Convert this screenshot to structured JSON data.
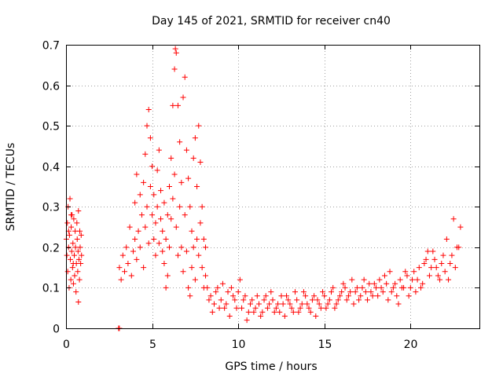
{
  "chart_data": {
    "type": "scatter",
    "title": "Day 145 of 2021, SRMTID for receiver cn40",
    "xlabel": "GPS time / hours",
    "ylabel": "SRMTID / TECUs",
    "xlim": [
      0,
      24
    ],
    "ylim": [
      0,
      0.7
    ],
    "xticks": [
      0,
      5,
      10,
      15,
      20
    ],
    "xtick_labels": [
      "0",
      "5",
      "10",
      "15",
      "20"
    ],
    "yticks": [
      0,
      0.1,
      0.2,
      0.3,
      0.4,
      0.5,
      0.6,
      0.7
    ],
    "ytick_labels": [
      "0",
      "0.1",
      "0.2",
      "0.3",
      "0.4",
      "0.5",
      "0.6",
      "0.7"
    ],
    "grid": true,
    "marker": "+",
    "color": "#ff0000",
    "series": [
      {
        "name": "SRMTID",
        "points": [
          [
            0.02,
            0.22
          ],
          [
            0.05,
            0.18
          ],
          [
            0.08,
            0.26
          ],
          [
            0.1,
            0.14
          ],
          [
            0.12,
            0.3
          ],
          [
            0.15,
            0.2
          ],
          [
            0.18,
            0.1
          ],
          [
            0.2,
            0.23
          ],
          [
            0.23,
            0.32
          ],
          [
            0.25,
            0.17
          ],
          [
            0.28,
            0.12
          ],
          [
            0.3,
            0.25
          ],
          [
            0.33,
            0.19
          ],
          [
            0.35,
            0.28
          ],
          [
            0.38,
            0.15
          ],
          [
            0.4,
            0.21
          ],
          [
            0.43,
            0.11
          ],
          [
            0.45,
            0.27
          ],
          [
            0.48,
            0.18
          ],
          [
            0.5,
            0.13
          ],
          [
            0.53,
            0.24
          ],
          [
            0.55,
            0.2
          ],
          [
            0.58,
            0.09
          ],
          [
            0.6,
            0.16
          ],
          [
            0.63,
            0.26
          ],
          [
            0.65,
            0.22
          ],
          [
            0.68,
            0.14
          ],
          [
            0.7,
            0.19
          ],
          [
            0.72,
            0.29
          ],
          [
            0.75,
            0.17
          ],
          [
            0.78,
            0.12
          ],
          [
            0.8,
            0.24
          ],
          [
            0.82,
            0.2
          ],
          [
            0.85,
            0.16
          ],
          [
            0.88,
            0.23
          ],
          [
            0.9,
            0.18
          ],
          [
            0.72,
            0.065
          ],
          [
            0.3,
            0.28
          ],
          [
            0.15,
            0.24
          ],
          [
            0.42,
            0.16
          ],
          [
            3.05,
            0.0
          ],
          [
            3.1,
            0.0
          ],
          [
            3.1,
            0.15
          ],
          [
            3.2,
            0.12
          ],
          [
            3.3,
            0.18
          ],
          [
            3.4,
            0.14
          ],
          [
            3.5,
            0.2
          ],
          [
            3.6,
            0.16
          ],
          [
            3.7,
            0.25
          ],
          [
            3.8,
            0.13
          ],
          [
            3.9,
            0.19
          ],
          [
            4.0,
            0.22
          ],
          [
            4.0,
            0.31
          ],
          [
            4.1,
            0.17
          ],
          [
            4.1,
            0.38
          ],
          [
            4.2,
            0.24
          ],
          [
            4.3,
            0.2
          ],
          [
            4.3,
            0.33
          ],
          [
            4.4,
            0.28
          ],
          [
            4.5,
            0.15
          ],
          [
            4.5,
            0.36
          ],
          [
            4.6,
            0.43
          ],
          [
            4.6,
            0.25
          ],
          [
            4.7,
            0.5
          ],
          [
            4.7,
            0.3
          ],
          [
            4.8,
            0.54
          ],
          [
            4.8,
            0.21
          ],
          [
            4.9,
            0.47
          ],
          [
            4.9,
            0.35
          ],
          [
            5.0,
            0.28
          ],
          [
            5.0,
            0.4
          ],
          [
            5.1,
            0.22
          ],
          [
            5.1,
            0.33
          ],
          [
            5.2,
            0.18
          ],
          [
            5.2,
            0.26
          ],
          [
            5.3,
            0.3
          ],
          [
            5.3,
            0.39
          ],
          [
            5.4,
            0.21
          ],
          [
            5.4,
            0.44
          ],
          [
            5.5,
            0.27
          ],
          [
            5.5,
            0.34
          ],
          [
            5.6,
            0.19
          ],
          [
            5.6,
            0.24
          ],
          [
            5.7,
            0.31
          ],
          [
            5.7,
            0.16
          ],
          [
            5.8,
            0.1
          ],
          [
            5.8,
            0.22
          ],
          [
            5.9,
            0.28
          ],
          [
            5.9,
            0.13
          ],
          [
            6.0,
            0.35
          ],
          [
            6.0,
            0.2
          ],
          [
            6.1,
            0.42
          ],
          [
            6.1,
            0.27
          ],
          [
            6.2,
            0.55
          ],
          [
            6.2,
            0.32
          ],
          [
            6.3,
            0.64
          ],
          [
            6.3,
            0.38
          ],
          [
            6.35,
            0.69
          ],
          [
            6.4,
            0.68
          ],
          [
            6.4,
            0.25
          ],
          [
            6.5,
            0.55
          ],
          [
            6.5,
            0.18
          ],
          [
            6.6,
            0.46
          ],
          [
            6.6,
            0.3
          ],
          [
            6.7,
            0.36
          ],
          [
            6.7,
            0.2
          ],
          [
            6.8,
            0.57
          ],
          [
            6.8,
            0.14
          ],
          [
            6.9,
            0.62
          ],
          [
            6.9,
            0.28
          ],
          [
            7.0,
            0.44
          ],
          [
            7.0,
            0.19
          ],
          [
            7.1,
            0.37
          ],
          [
            7.1,
            0.1
          ],
          [
            7.2,
            0.3
          ],
          [
            7.2,
            0.08
          ],
          [
            7.3,
            0.24
          ],
          [
            7.3,
            0.15
          ],
          [
            7.4,
            0.42
          ],
          [
            7.4,
            0.2
          ],
          [
            7.5,
            0.47
          ],
          [
            7.5,
            0.12
          ],
          [
            7.6,
            0.35
          ],
          [
            7.6,
            0.22
          ],
          [
            7.7,
            0.5
          ],
          [
            7.7,
            0.18
          ],
          [
            7.8,
            0.41
          ],
          [
            7.8,
            0.26
          ],
          [
            7.9,
            0.3
          ],
          [
            7.9,
            0.15
          ],
          [
            8.0,
            0.22
          ],
          [
            8.0,
            0.1
          ],
          [
            8.1,
            0.2
          ],
          [
            8.1,
            0.13
          ],
          [
            8.3,
            0.07
          ],
          [
            8.5,
            0.04
          ],
          [
            8.7,
            0.09
          ],
          [
            8.9,
            0.05
          ],
          [
            9.1,
            0.11
          ],
          [
            9.3,
            0.06
          ],
          [
            9.5,
            0.03
          ],
          [
            9.7,
            0.08
          ],
          [
            9.9,
            0.05
          ],
          [
            10.1,
            0.12
          ],
          [
            10.3,
            0.07
          ],
          [
            10.5,
            0.02
          ],
          [
            10.7,
            0.06
          ],
          [
            10.9,
            0.04
          ],
          [
            11.1,
            0.08
          ],
          [
            11.3,
            0.03
          ],
          [
            11.5,
            0.07
          ],
          [
            11.7,
            0.05
          ],
          [
            11.9,
            0.09
          ],
          [
            12.1,
            0.04
          ],
          [
            12.3,
            0.06
          ],
          [
            12.5,
            0.08
          ],
          [
            12.7,
            0.03
          ],
          [
            12.9,
            0.07
          ],
          [
            13.1,
            0.05
          ],
          [
            13.3,
            0.09
          ],
          [
            13.5,
            0.04
          ],
          [
            13.7,
            0.06
          ],
          [
            13.9,
            0.08
          ],
          [
            14.1,
            0.05
          ],
          [
            14.3,
            0.07
          ],
          [
            14.5,
            0.03
          ],
          [
            14.7,
            0.06
          ],
          [
            14.9,
            0.09
          ],
          [
            15.1,
            0.05
          ],
          [
            15.3,
            0.07
          ],
          [
            15.5,
            0.1
          ],
          [
            15.7,
            0.06
          ],
          [
            15.9,
            0.08
          ],
          [
            16.1,
            0.11
          ],
          [
            16.3,
            0.07
          ],
          [
            16.5,
            0.09
          ],
          [
            16.7,
            0.06
          ],
          [
            16.9,
            0.1
          ],
          [
            17.1,
            0.08
          ],
          [
            17.3,
            0.12
          ],
          [
            17.5,
            0.07
          ],
          [
            17.7,
            0.09
          ],
          [
            17.9,
            0.11
          ],
          [
            18.1,
            0.08
          ],
          [
            18.3,
            0.1
          ],
          [
            18.5,
            0.13
          ],
          [
            18.7,
            0.07
          ],
          [
            18.9,
            0.09
          ],
          [
            19.1,
            0.11
          ],
          [
            19.3,
            0.06
          ],
          [
            19.5,
            0.1
          ],
          [
            19.7,
            0.14
          ],
          [
            19.9,
            0.08
          ],
          [
            20.1,
            0.12
          ],
          [
            20.3,
            0.09
          ],
          [
            20.5,
            0.15
          ],
          [
            20.7,
            0.11
          ],
          [
            20.9,
            0.17
          ],
          [
            21.1,
            0.13
          ],
          [
            21.3,
            0.19
          ],
          [
            21.5,
            0.15
          ],
          [
            21.7,
            0.12
          ],
          [
            21.9,
            0.18
          ],
          [
            22.1,
            0.22
          ],
          [
            22.3,
            0.16
          ],
          [
            22.5,
            0.27
          ],
          [
            22.7,
            0.2
          ],
          [
            22.9,
            0.25
          ],
          [
            8.2,
            0.1
          ],
          [
            8.4,
            0.08
          ],
          [
            8.6,
            0.06
          ],
          [
            8.8,
            0.1
          ],
          [
            9.0,
            0.07
          ],
          [
            9.2,
            0.05
          ],
          [
            9.4,
            0.09
          ],
          [
            9.6,
            0.1
          ],
          [
            9.8,
            0.07
          ],
          [
            10.0,
            0.09
          ],
          [
            10.2,
            0.05
          ],
          [
            10.4,
            0.08
          ],
          [
            10.6,
            0.04
          ],
          [
            10.8,
            0.07
          ],
          [
            11.0,
            0.05
          ],
          [
            11.2,
            0.06
          ],
          [
            11.4,
            0.04
          ],
          [
            11.6,
            0.08
          ],
          [
            11.8,
            0.06
          ],
          [
            12.0,
            0.07
          ],
          [
            12.2,
            0.05
          ],
          [
            12.4,
            0.04
          ],
          [
            12.6,
            0.06
          ],
          [
            12.8,
            0.08
          ],
          [
            13.0,
            0.06
          ],
          [
            13.2,
            0.04
          ],
          [
            13.4,
            0.07
          ],
          [
            13.6,
            0.05
          ],
          [
            13.8,
            0.09
          ],
          [
            14.0,
            0.06
          ],
          [
            14.2,
            0.04
          ],
          [
            14.4,
            0.08
          ],
          [
            14.6,
            0.07
          ],
          [
            14.8,
            0.05
          ],
          [
            15.0,
            0.08
          ],
          [
            15.2,
            0.06
          ],
          [
            15.4,
            0.09
          ],
          [
            15.6,
            0.05
          ],
          [
            15.8,
            0.07
          ],
          [
            16.0,
            0.09
          ],
          [
            16.2,
            0.1
          ],
          [
            16.4,
            0.08
          ],
          [
            16.6,
            0.12
          ],
          [
            16.8,
            0.09
          ],
          [
            17.0,
            0.07
          ],
          [
            17.2,
            0.1
          ],
          [
            17.4,
            0.09
          ],
          [
            17.6,
            0.11
          ],
          [
            17.8,
            0.08
          ],
          [
            18.0,
            0.1
          ],
          [
            18.2,
            0.12
          ],
          [
            18.4,
            0.09
          ],
          [
            18.6,
            0.11
          ],
          [
            18.8,
            0.14
          ],
          [
            19.0,
            0.1
          ],
          [
            19.2,
            0.08
          ],
          [
            19.4,
            0.12
          ],
          [
            19.6,
            0.1
          ],
          [
            19.8,
            0.13
          ],
          [
            20.0,
            0.1
          ],
          [
            20.2,
            0.14
          ],
          [
            20.4,
            0.12
          ],
          [
            20.6,
            0.1
          ],
          [
            20.8,
            0.16
          ],
          [
            21.0,
            0.19
          ],
          [
            21.2,
            0.15
          ],
          [
            21.4,
            0.17
          ],
          [
            21.6,
            0.13
          ],
          [
            21.8,
            0.16
          ],
          [
            22.0,
            0.14
          ],
          [
            22.2,
            0.12
          ],
          [
            22.4,
            0.18
          ],
          [
            22.6,
            0.15
          ],
          [
            22.8,
            0.2
          ]
        ]
      }
    ]
  }
}
